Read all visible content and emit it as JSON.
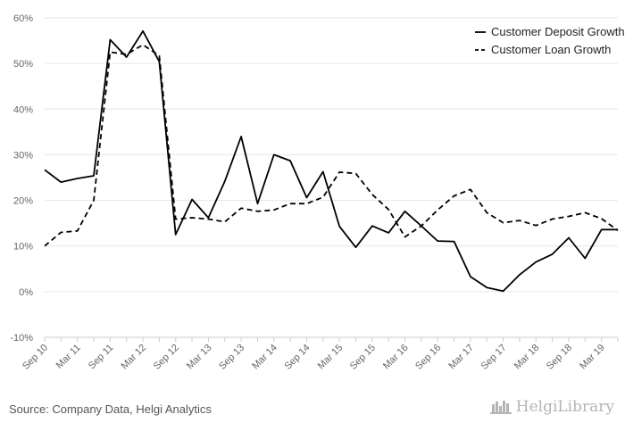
{
  "chart_data": {
    "type": "line",
    "title": "",
    "xlabel": "",
    "ylabel": "",
    "ylim": [
      -10,
      60
    ],
    "y_ticks": [
      -10,
      0,
      10,
      20,
      30,
      40,
      50,
      60
    ],
    "y_tick_labels": [
      "-10%",
      "0%",
      "10%",
      "20%",
      "30%",
      "40%",
      "50%",
      "60%"
    ],
    "grid": true,
    "legend": "top-right",
    "x_tick_labels": [
      "Sep 10",
      "Mar 11",
      "Sep 11",
      "Mar 12",
      "Sep 12",
      "Mar 13",
      "Sep 13",
      "Mar 14",
      "Sep 14",
      "Mar 15",
      "Sep 15",
      "Mar 16",
      "Sep 16",
      "Mar 17",
      "Sep 17",
      "Mar 18",
      "Sep 18",
      "Mar 19"
    ],
    "x": [
      "Sep 10",
      "Dec 10",
      "Mar 11",
      "Jun 11",
      "Sep 11",
      "Dec 11",
      "Mar 12",
      "Jun 12",
      "Sep 12",
      "Dec 12",
      "Mar 13",
      "Jun 13",
      "Sep 13",
      "Dec 13",
      "Mar 14",
      "Jun 14",
      "Sep 14",
      "Dec 14",
      "Mar 15",
      "Jun 15",
      "Sep 15",
      "Dec 15",
      "Mar 16",
      "Jun 16",
      "Sep 16",
      "Dec 16",
      "Mar 17",
      "Jun 17",
      "Sep 17",
      "Dec 17",
      "Mar 18",
      "Jun 18",
      "Sep 18",
      "Dec 18",
      "Mar 19",
      "Jun 19"
    ],
    "series": [
      {
        "name": "Customer Deposit Growth",
        "style": "solid",
        "color": "#000000",
        "values": [
          26.7,
          24.0,
          24.8,
          25.4,
          55.2,
          51.4,
          57.1,
          50.4,
          12.5,
          20.2,
          16.2,
          24.2,
          34.0,
          19.3,
          30.0,
          28.7,
          20.6,
          26.3,
          14.3,
          9.7,
          14.4,
          12.9,
          17.6,
          14.4,
          11.1,
          11.0,
          3.3,
          0.9,
          0.1,
          3.7,
          6.5,
          8.2,
          11.8,
          7.3,
          13.6,
          13.6
        ]
      },
      {
        "name": "Customer Loan Growth",
        "style": "dashed",
        "color": "#000000",
        "values": [
          10.0,
          13.0,
          13.3,
          20.0,
          52.5,
          52.0,
          54.1,
          51.7,
          15.9,
          16.2,
          15.9,
          15.3,
          18.3,
          17.6,
          17.9,
          19.3,
          19.3,
          20.7,
          26.2,
          25.9,
          21.3,
          18.0,
          12.0,
          14.4,
          17.9,
          21.0,
          22.4,
          17.3,
          15.1,
          15.6,
          14.5,
          15.9,
          16.5,
          17.3,
          16.0,
          13.4
        ]
      }
    ]
  },
  "footer": {
    "source": "Source: Company Data, Helgi Analytics",
    "brand": "HelgiLibrary"
  }
}
